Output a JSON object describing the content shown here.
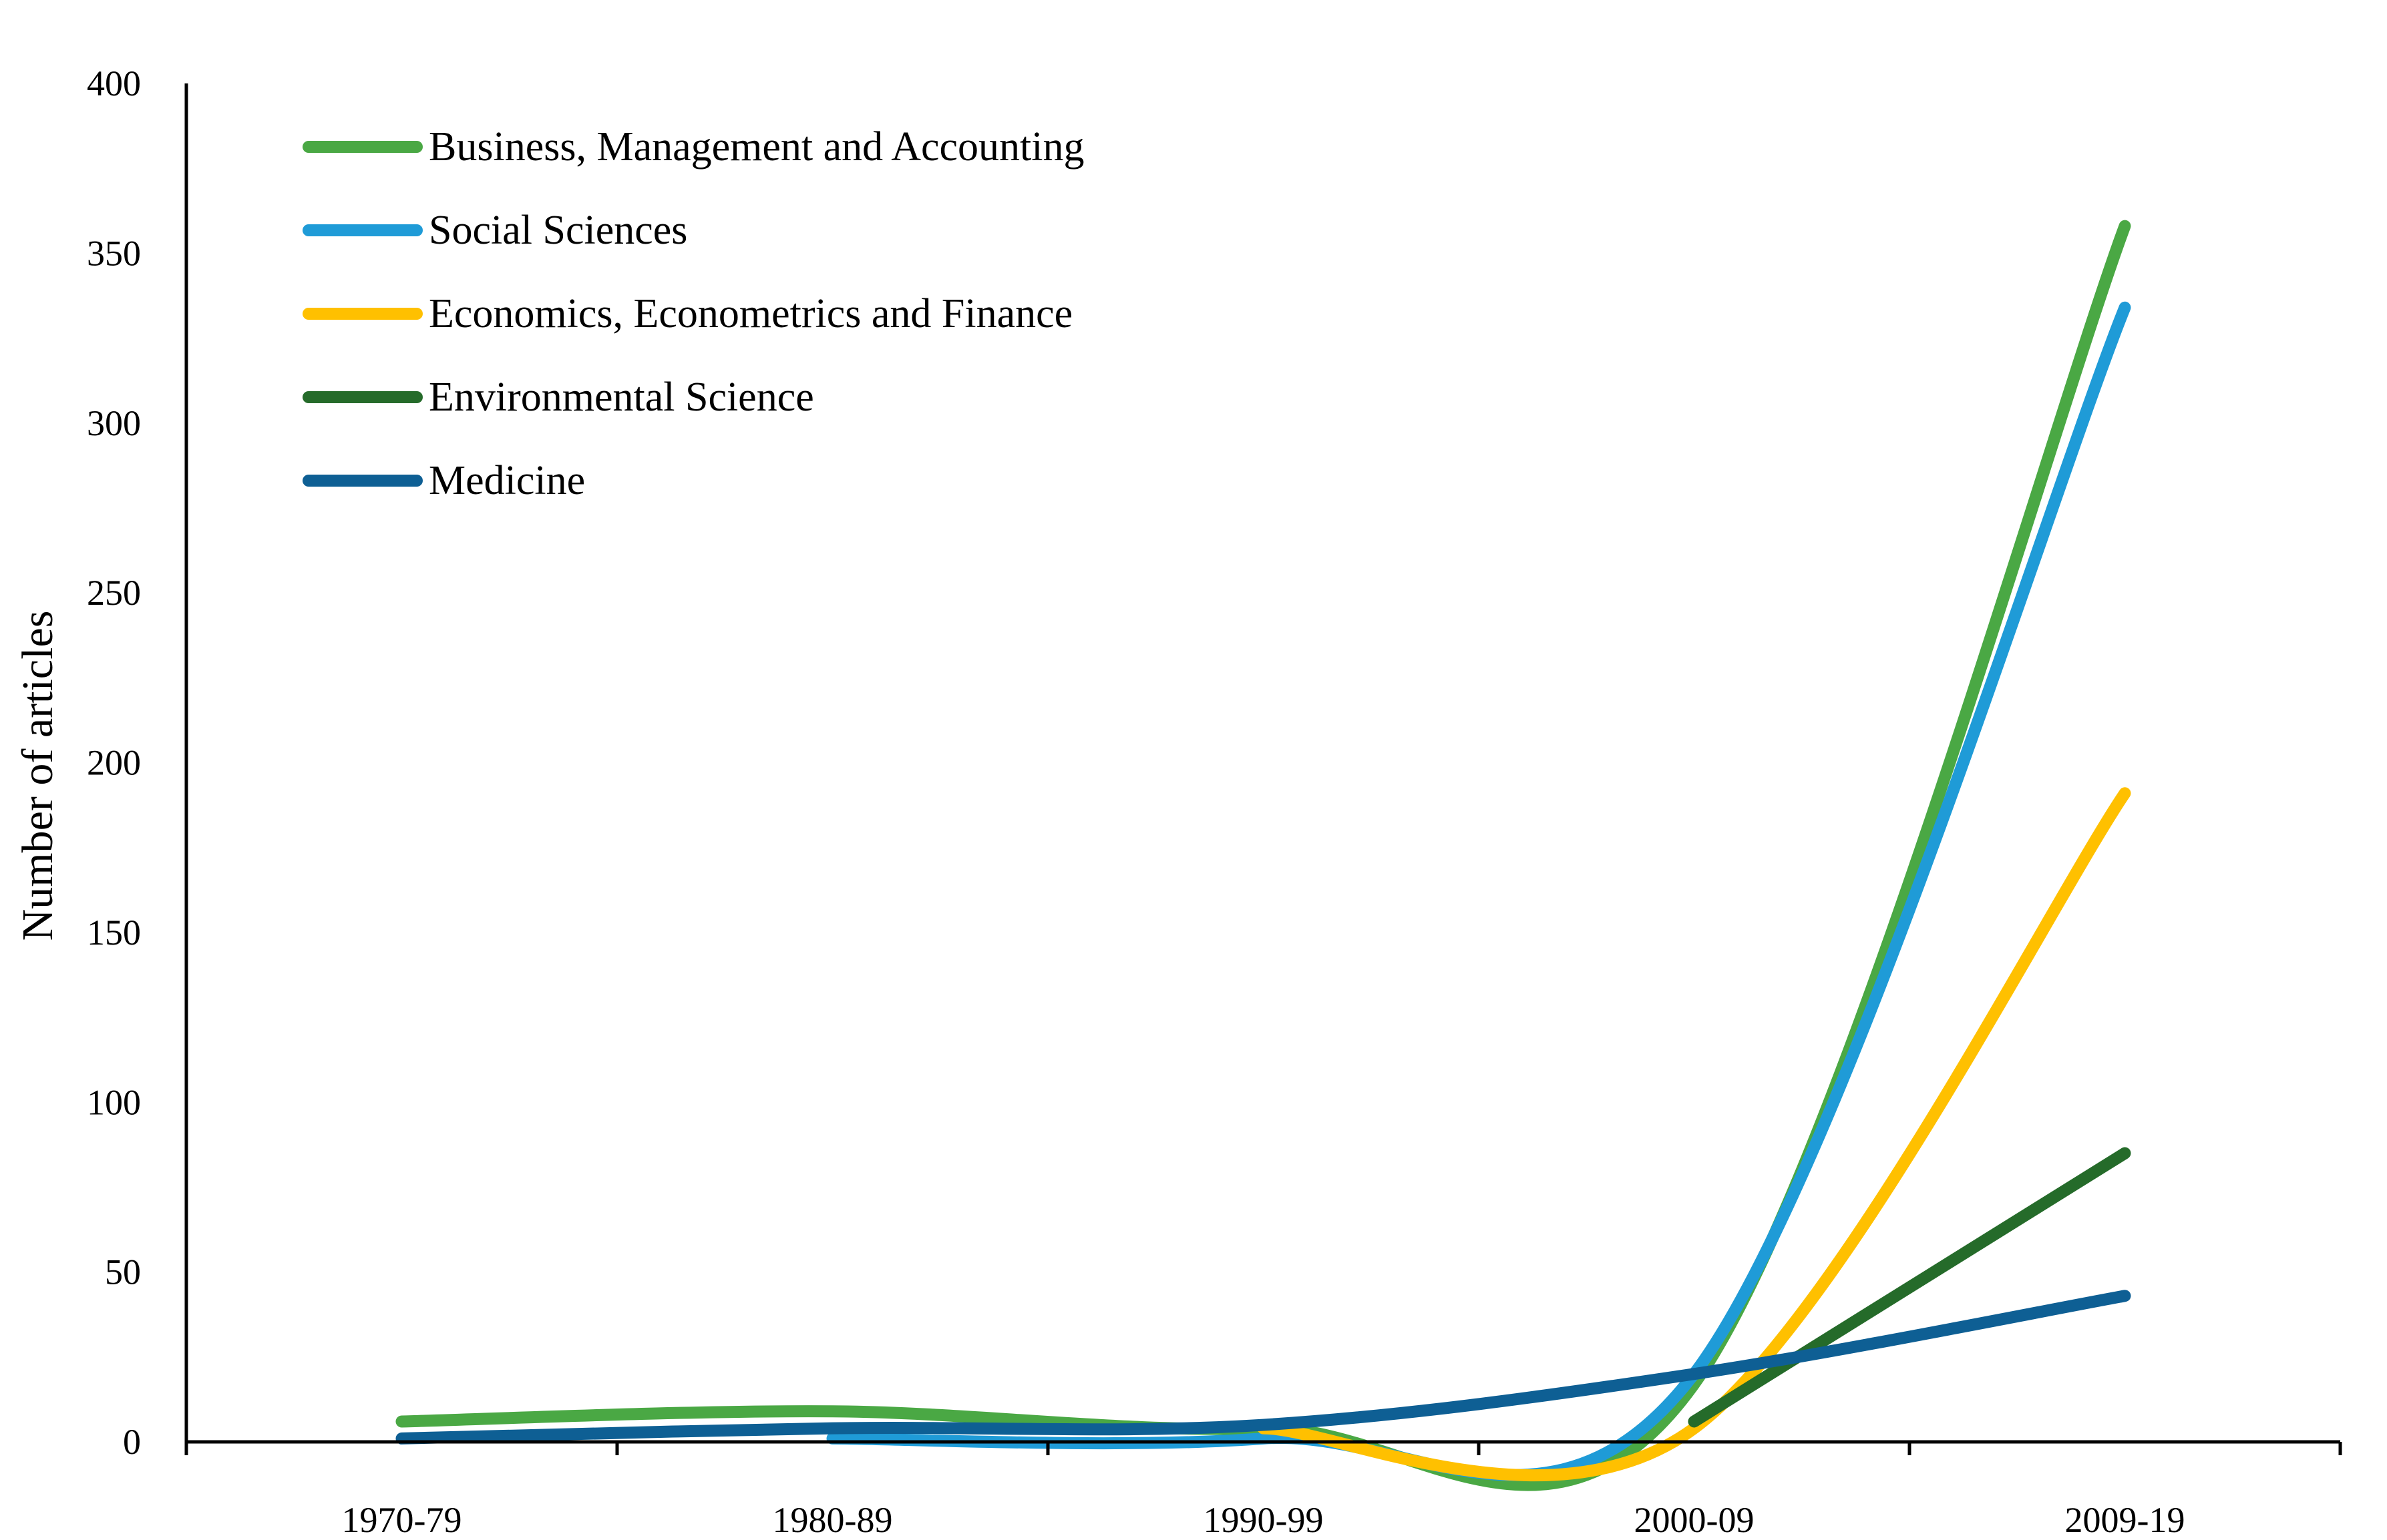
{
  "chart_data": {
    "type": "line",
    "title": "",
    "xlabel": "",
    "ylabel": "Number of articles",
    "ylim": [
      0,
      400
    ],
    "yticks": [
      0,
      50,
      100,
      150,
      200,
      250,
      300,
      350,
      400
    ],
    "categories": [
      "1970-79",
      "1980-89",
      "1990-99",
      "2000-09",
      "2009-19"
    ],
    "legend_position": "top-left",
    "smooth": true,
    "series": [
      {
        "name": "Business, Management and Accounting",
        "color": "#4aa844",
        "values": [
          6,
          9,
          4,
          17,
          358
        ]
      },
      {
        "name": "Social Sciences",
        "color": "#1f9bd7",
        "values": [
          null,
          1,
          1,
          20,
          334
        ]
      },
      {
        "name": "Economics, Econometrics and Finance",
        "color": "#ffc000",
        "values": [
          null,
          null,
          4,
          4,
          191
        ]
      },
      {
        "name": "Environmental Science",
        "color": "#256b2a",
        "values": [
          null,
          null,
          null,
          6,
          85
        ],
        "x_start_offset": 0.5
      },
      {
        "name": "Medicine",
        "color": "#0e5f94",
        "values": [
          1,
          4,
          5,
          20,
          43
        ]
      }
    ]
  }
}
